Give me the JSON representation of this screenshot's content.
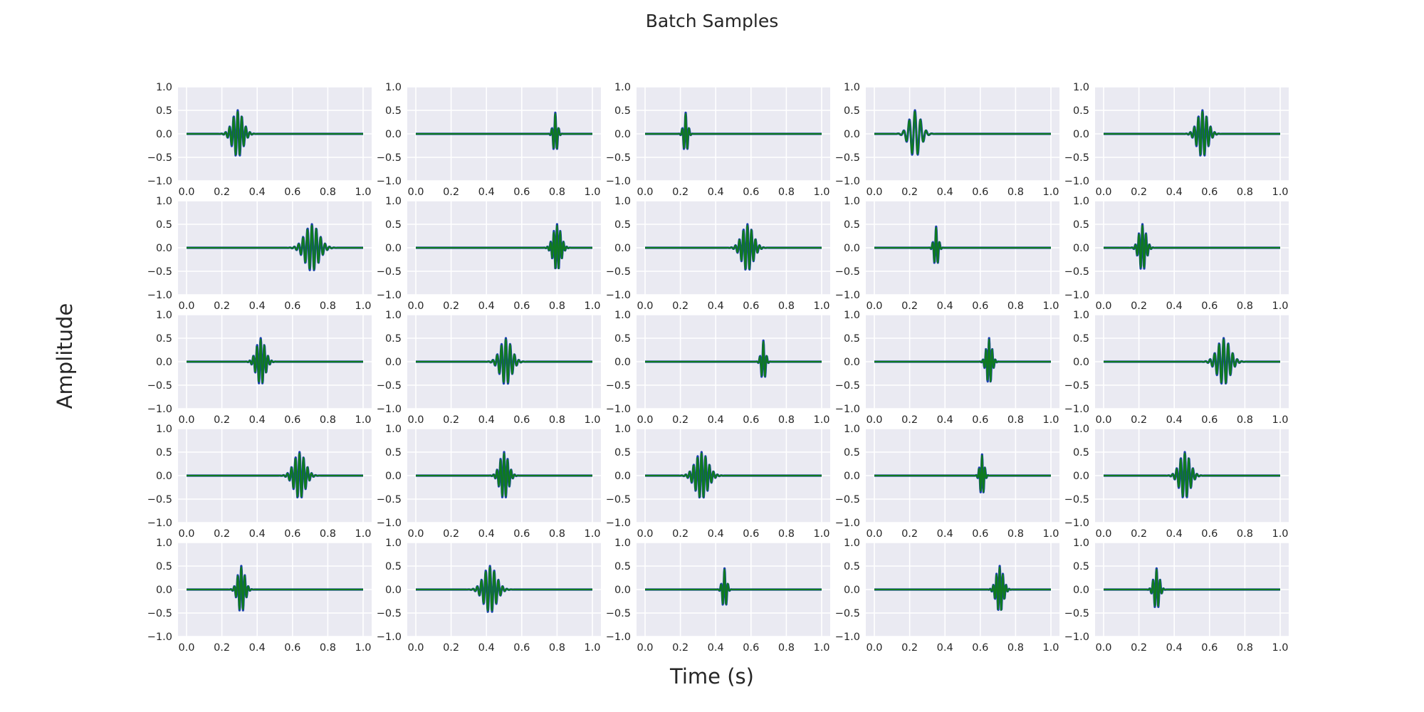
{
  "title": "Batch Samples",
  "colors": {
    "signal": "#1a3fb0",
    "reconstruction": "#0f7a1f",
    "panel_bg": "#eaeaf2",
    "grid": "#ffffff"
  },
  "chart_data": {
    "type": "line",
    "title": "Batch Samples",
    "xlabel": "Time (s)",
    "ylabel": "Amplitude",
    "layout": "5x5 grid of subplots",
    "grid": true,
    "xlim": [
      0.0,
      1.0
    ],
    "ylim": [
      -1.0,
      1.0
    ],
    "x_ticks": [
      "0.0",
      "0.2",
      "0.4",
      "0.6",
      "0.8",
      "1.0"
    ],
    "y_ticks": [
      "1.0",
      "0.5",
      "0.0",
      "−0.5",
      "−1.0"
    ],
    "series_colors": [
      "#1a3fb0",
      "#0f7a1f"
    ],
    "series_description": "each panel shows a Gaussian-windowed sine burst (wavelet) drawn in blue with a green overlay",
    "panels": [
      {
        "center": 0.29,
        "width": 0.03,
        "cycles": 2.6,
        "amplitude": 0.5
      },
      {
        "center": 0.79,
        "width": 0.012,
        "cycles": 1.2,
        "amplitude": 0.45
      },
      {
        "center": 0.23,
        "width": 0.012,
        "cycles": 1.2,
        "amplitude": 0.45
      },
      {
        "center": 0.23,
        "width": 0.032,
        "cycles": 2.0,
        "amplitude": 0.5
      },
      {
        "center": 0.56,
        "width": 0.03,
        "cycles": 2.6,
        "amplitude": 0.5
      },
      {
        "center": 0.71,
        "width": 0.04,
        "cycles": 3.2,
        "amplitude": 0.5
      },
      {
        "center": 0.8,
        "width": 0.022,
        "cycles": 2.4,
        "amplitude": 0.5
      },
      {
        "center": 0.58,
        "width": 0.032,
        "cycles": 2.8,
        "amplitude": 0.5
      },
      {
        "center": 0.35,
        "width": 0.012,
        "cycles": 1.2,
        "amplitude": 0.45
      },
      {
        "center": 0.22,
        "width": 0.02,
        "cycles": 2.0,
        "amplitude": 0.5
      },
      {
        "center": 0.42,
        "width": 0.025,
        "cycles": 2.4,
        "amplitude": 0.5
      },
      {
        "center": 0.51,
        "width": 0.032,
        "cycles": 2.6,
        "amplitude": 0.5
      },
      {
        "center": 0.67,
        "width": 0.012,
        "cycles": 1.2,
        "amplitude": 0.45
      },
      {
        "center": 0.65,
        "width": 0.016,
        "cycles": 1.8,
        "amplitude": 0.5
      },
      {
        "center": 0.68,
        "width": 0.036,
        "cycles": 2.8,
        "amplitude": 0.5
      },
      {
        "center": 0.64,
        "width": 0.032,
        "cycles": 2.8,
        "amplitude": 0.5
      },
      {
        "center": 0.5,
        "width": 0.024,
        "cycles": 2.4,
        "amplitude": 0.5
      },
      {
        "center": 0.32,
        "width": 0.036,
        "cycles": 3.2,
        "amplitude": 0.5
      },
      {
        "center": 0.61,
        "width": 0.012,
        "cycles": 1.4,
        "amplitude": 0.45
      },
      {
        "center": 0.46,
        "width": 0.03,
        "cycles": 2.6,
        "amplitude": 0.5
      },
      {
        "center": 0.31,
        "width": 0.02,
        "cycles": 2.0,
        "amplitude": 0.5
      },
      {
        "center": 0.42,
        "width": 0.036,
        "cycles": 3.0,
        "amplitude": 0.5
      },
      {
        "center": 0.45,
        "width": 0.012,
        "cycles": 1.2,
        "amplitude": 0.45
      },
      {
        "center": 0.71,
        "width": 0.02,
        "cycles": 2.2,
        "amplitude": 0.5
      },
      {
        "center": 0.3,
        "width": 0.016,
        "cycles": 1.6,
        "amplitude": 0.45
      }
    ]
  }
}
